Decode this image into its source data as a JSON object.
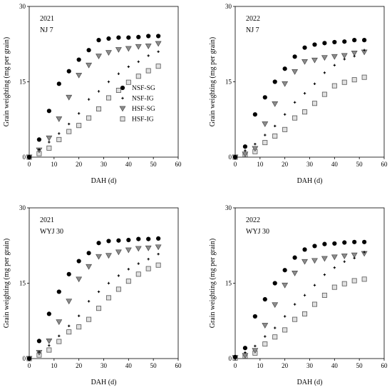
{
  "legend": {
    "items": [
      {
        "label": "NSF-SG",
        "marker": "filled-circle"
      },
      {
        "label": "NSF-IG",
        "marker": "small-plus"
      },
      {
        "label": "HSF-SG",
        "marker": "down-triangle"
      },
      {
        "label": "HSF-IG",
        "marker": "open-square"
      }
    ]
  },
  "colors": {
    "black": "#000000",
    "triangle_fill": "#8c8c8c",
    "square_fill": "#e0e0e0",
    "square_stroke": "#555555"
  },
  "chart_data": [
    {
      "type": "scatter",
      "year": "2021",
      "cultivar": "NJ 7",
      "xlabel": "DAH (d)",
      "ylabel": "Grain weighting (mg per grain)",
      "xlim": [
        0,
        60
      ],
      "ylim": [
        0,
        30
      ],
      "xticks": [
        0,
        10,
        20,
        30,
        40,
        50,
        60
      ],
      "yticks": [
        0,
        15,
        30
      ],
      "x": [
        0,
        4,
        8,
        12,
        16,
        20,
        24,
        28,
        32,
        36,
        40,
        44,
        48,
        52
      ],
      "series": [
        {
          "name": "NSF-SG",
          "values": [
            0,
            3.5,
            9.2,
            14.6,
            17.1,
            19.4,
            21.3,
            23.3,
            23.6,
            23.8,
            23.8,
            23.9,
            24.1,
            24.1
          ]
        },
        {
          "name": "NSF-IG",
          "values": [
            0,
            1.5,
            3.0,
            4.7,
            6.6,
            8.7,
            11.5,
            13.1,
            15.0,
            16.6,
            18.0,
            19.0,
            20.2,
            21.0
          ]
        },
        {
          "name": "HSF-SG",
          "values": [
            0,
            1.4,
            3.8,
            7.6,
            11.9,
            16.3,
            18.3,
            20.1,
            20.8,
            21.4,
            21.6,
            22.0,
            22.1,
            22.6
          ]
        },
        {
          "name": "HSF-IG",
          "values": [
            0,
            0.7,
            1.8,
            3.5,
            5.1,
            6.3,
            7.8,
            9.6,
            11.8,
            13.3,
            14.9,
            16.1,
            17.2,
            18.1
          ]
        }
      ]
    },
    {
      "type": "scatter",
      "year": "2022",
      "cultivar": "NJ 7",
      "xlabel": "DAH (d)",
      "ylabel": "Grain weighting (mg per grain)",
      "xlim": [
        0,
        60
      ],
      "ylim": [
        0,
        30
      ],
      "xticks": [
        0,
        10,
        20,
        30,
        40,
        50,
        60
      ],
      "yticks": [
        0,
        15,
        30
      ],
      "x": [
        0,
        4,
        8,
        12,
        16,
        20,
        24,
        28,
        32,
        36,
        40,
        44,
        48,
        52
      ],
      "series": [
        {
          "name": "NSF-SG",
          "values": [
            0,
            2.1,
            8.5,
            11.9,
            15.0,
            17.6,
            20.0,
            21.8,
            22.4,
            22.7,
            22.9,
            23.0,
            23.3,
            23.3
          ]
        },
        {
          "name": "NSF-IG",
          "values": [
            0,
            1.3,
            2.6,
            4.4,
            6.2,
            8.5,
            10.9,
            12.7,
            14.6,
            16.8,
            18.3,
            19.5,
            20.1,
            21.3
          ]
        },
        {
          "name": "HSF-SG",
          "values": [
            0,
            0.6,
            1.7,
            6.6,
            10.6,
            14.6,
            17.0,
            19.0,
            19.3,
            19.8,
            20.0,
            20.2,
            20.7,
            20.9
          ]
        },
        {
          "name": "HSF-IG",
          "values": [
            0,
            0.5,
            1.1,
            2.9,
            4.2,
            5.5,
            7.8,
            9.0,
            10.7,
            12.5,
            14.2,
            14.9,
            15.4,
            15.9
          ]
        }
      ]
    },
    {
      "type": "scatter",
      "year": "2021",
      "cultivar": "WYJ 30",
      "xlabel": "DAH (d)",
      "ylabel": "Grain weighting (mg per grain)",
      "xlim": [
        0,
        60
      ],
      "ylim": [
        0,
        30
      ],
      "xticks": [
        0,
        10,
        20,
        30,
        40,
        50,
        60
      ],
      "yticks": [
        0,
        15,
        30
      ],
      "x": [
        0,
        4,
        8,
        12,
        16,
        20,
        24,
        28,
        32,
        36,
        40,
        44,
        48,
        52
      ],
      "series": [
        {
          "name": "NSF-SG",
          "values": [
            0,
            3.5,
            8.9,
            13.3,
            16.8,
            19.4,
            21.0,
            23.0,
            23.4,
            23.5,
            23.6,
            23.8,
            23.8,
            23.9
          ]
        },
        {
          "name": "NSF-IG",
          "values": [
            0,
            1.3,
            2.6,
            4.5,
            6.5,
            8.5,
            11.4,
            13.3,
            15.0,
            16.5,
            17.8,
            18.9,
            19.8,
            20.8
          ]
        },
        {
          "name": "HSF-SG",
          "values": [
            0,
            1.2,
            3.5,
            7.3,
            11.4,
            15.8,
            18.3,
            20.3,
            20.5,
            21.2,
            21.6,
            21.9,
            22.0,
            22.2
          ]
        },
        {
          "name": "HSF-IG",
          "values": [
            0,
            0.7,
            1.7,
            3.4,
            5.3,
            6.3,
            7.8,
            10.0,
            12.1,
            13.8,
            15.4,
            16.8,
            17.9,
            18.6
          ]
        }
      ]
    },
    {
      "type": "scatter",
      "year": "2022",
      "cultivar": "WYJ 30",
      "xlabel": "DAH (d)",
      "ylabel": "Grain weighting (mg per grain)",
      "xlim": [
        0,
        60
      ],
      "ylim": [
        0,
        30
      ],
      "xticks": [
        0,
        10,
        20,
        30,
        40,
        50,
        60
      ],
      "yticks": [
        0,
        15,
        30
      ],
      "x": [
        0,
        4,
        8,
        12,
        16,
        20,
        24,
        28,
        32,
        36,
        40,
        44,
        48,
        52
      ],
      "series": [
        {
          "name": "NSF-SG",
          "values": [
            0.3,
            2.1,
            8.4,
            11.8,
            15.0,
            17.6,
            20.1,
            21.7,
            22.4,
            22.8,
            22.9,
            23.1,
            23.2,
            23.2
          ]
        },
        {
          "name": "NSF-IG",
          "values": [
            0,
            1.2,
            2.5,
            4.4,
            6.1,
            8.4,
            10.8,
            12.6,
            14.6,
            16.7,
            18.1,
            19.3,
            20.0,
            21.2
          ]
        },
        {
          "name": "HSF-SG",
          "values": [
            0.2,
            0.6,
            1.6,
            6.6,
            10.7,
            14.6,
            17.0,
            19.3,
            19.5,
            19.9,
            20.2,
            20.4,
            20.6,
            20.9
          ]
        },
        {
          "name": "HSF-IG",
          "values": [
            0.1,
            0.5,
            1.1,
            2.9,
            4.3,
            5.7,
            7.8,
            8.9,
            10.8,
            12.6,
            14.2,
            14.9,
            15.5,
            15.8
          ]
        }
      ]
    }
  ]
}
